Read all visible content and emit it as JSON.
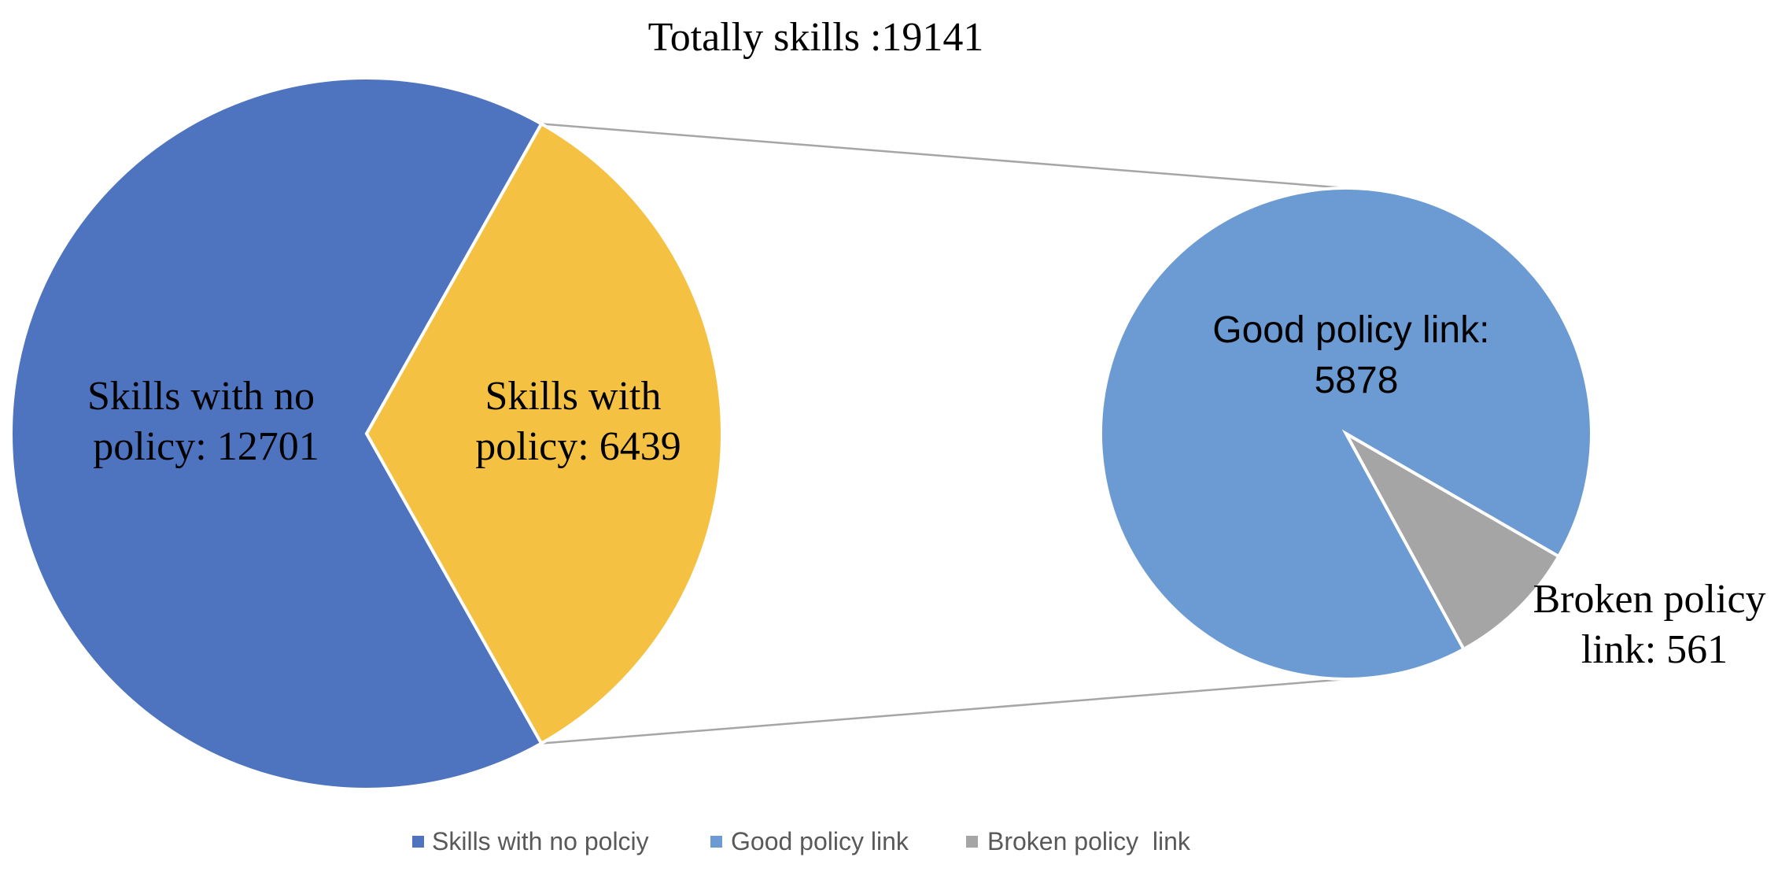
{
  "chart_data": {
    "type": "pie",
    "subtype": "pie-of-pie",
    "title": "Totally skills :19141",
    "main_pie": {
      "slices": [
        {
          "label": "Skills with no policy: 12701",
          "value": 12701,
          "color": "#4E74BF"
        },
        {
          "label": "Skills with policy: 6439",
          "value": 6439,
          "color": "#F5C142"
        }
      ]
    },
    "secondary_pie": {
      "slices": [
        {
          "label": "Good policy link: 5878",
          "value": 5878,
          "color": "#6B9BD2"
        },
        {
          "label": "Broken policy link: 561",
          "value": 561,
          "color": "#A5A5A5"
        }
      ]
    },
    "legend": {
      "position": "bottom",
      "entries": [
        {
          "label": "Skills with no polciy",
          "color": "#4E74BF"
        },
        {
          "label": "Good policy link",
          "color": "#6B9BD2"
        },
        {
          "label": "Broken policy  link",
          "color": "#A5A5A5"
        }
      ]
    },
    "connector_color": "#A6A6A6"
  }
}
